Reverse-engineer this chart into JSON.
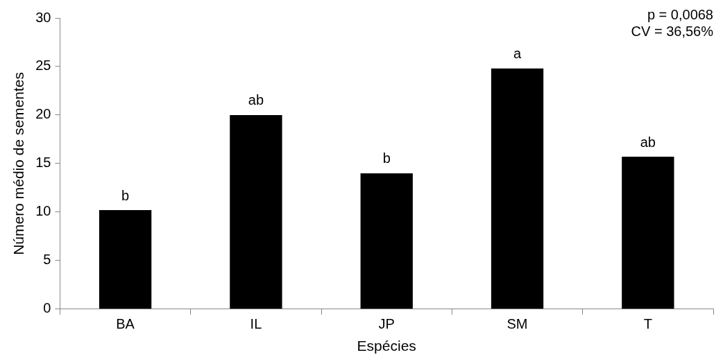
{
  "chart_data": {
    "type": "bar",
    "xlabel": "Espécies",
    "ylabel": "Número médio de sementes",
    "categories": [
      "BA",
      "IL",
      "JP",
      "SM",
      "T"
    ],
    "values": [
      10.2,
      20.0,
      14.0,
      24.8,
      15.7
    ],
    "color": "#000000",
    "ylim": [
      0,
      30
    ],
    "yticks": [
      0,
      5,
      10,
      15,
      20,
      25,
      30
    ],
    "grid": false,
    "legend": false,
    "annotations": [
      "p = 0,0068",
      "CV = 36,56%",
      {
        "text": "b",
        "x": "BA",
        "y": 10.2
      },
      {
        "text": "ab",
        "x": "IL",
        "y": 20.0
      },
      {
        "text": "b",
        "x": "JP",
        "y": 14.0
      },
      {
        "text": "a",
        "x": "SM",
        "y": 24.8
      },
      {
        "text": "ab",
        "x": "T",
        "y": 15.7
      }
    ]
  }
}
